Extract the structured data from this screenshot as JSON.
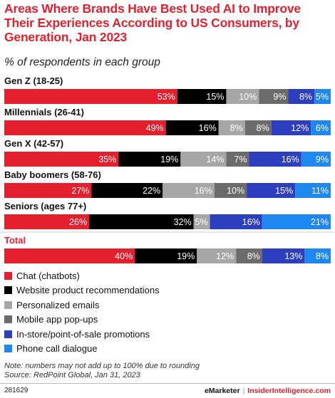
{
  "header": {
    "title": "Areas Where Brands Have Best Used AI to Improve Their Experiences According to US Consumers, by Generation, Jan 2023",
    "subtitle": "% of respondents in each group"
  },
  "chart_data": {
    "type": "bar",
    "orientation": "horizontal-stacked",
    "categories": [
      "Gen Z (18-25)",
      "Millennials (26-41)",
      "Gen X (42-57)",
      "Baby boomers (58-76)",
      "Seniors (ages 77+)",
      "Total"
    ],
    "series": [
      {
        "name": "Chat (chatbots)",
        "color": "#e4202f",
        "values": [
          53,
          49,
          35,
          27,
          26,
          40
        ]
      },
      {
        "name": "Website product recommendations",
        "color": "#000000",
        "values": [
          15,
          16,
          19,
          22,
          32,
          19
        ]
      },
      {
        "name": "Personalized emails",
        "color": "#a6a6a6",
        "values": [
          10,
          8,
          14,
          16,
          5,
          12
        ]
      },
      {
        "name": "Mobile app pop-ups",
        "color": "#6b6b6b",
        "values": [
          9,
          8,
          7,
          10,
          0,
          8
        ]
      },
      {
        "name": "In-store/point-of-sale promotions",
        "color": "#2d3fbf",
        "values": [
          8,
          12,
          16,
          15,
          16,
          13
        ]
      },
      {
        "name": "Phone call dialogue",
        "color": "#1e87f0",
        "values": [
          5,
          6,
          9,
          11,
          21,
          8
        ]
      }
    ],
    "value_suffix": "%",
    "total_category_color": "#e4202f",
    "legend_position": "bottom"
  },
  "notes": {
    "note": "Note: numbers may not add up to 100% due to rounding",
    "source": "Source: RedPoint Global, Jan 31, 2023"
  },
  "footer": {
    "id": "281629",
    "brand": "eMarketer",
    "separator": "|",
    "brand2": "InsiderIntelligence.com"
  }
}
